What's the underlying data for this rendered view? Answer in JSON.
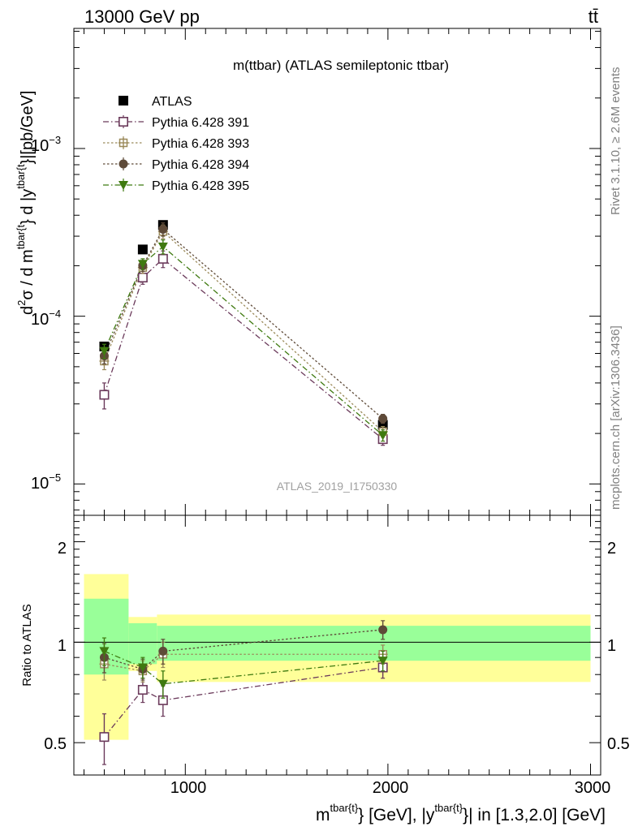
{
  "header": {
    "energy_label": "13000 GeV pp",
    "process_label": "tt̄"
  },
  "side_labels": {
    "rivet": "Rivet 3.1.10, ≥ 2.6M events",
    "mcplots": "mcplots.cern.ch [arXiv:1306.3436]"
  },
  "chart_data": [
    {
      "type": "scatter",
      "panel": "main",
      "title": "m(ttbar) (ATLAS semileptonic ttbar)",
      "watermark": "ATLAS_2019_I1750330",
      "ylabel_parts": {
        "d2": "d",
        "sq": "2",
        "sigma": "σ / d m",
        "sup1": "tbar{t",
        "mid": "} d |y",
        "sup2": "tbar{t",
        "end": "}|[pb/GeV]"
      },
      "xlabel_parts": {
        "m": "m",
        "sup1": "tbar{t}",
        "mid": "} [GeV], |y",
        "sup2": "tbar{t}",
        "end": "}| in [1.3,2.0] [GeV]"
      },
      "xlim": [
        450,
        3050
      ],
      "ylim": [
        6.5e-06,
        0.0052
      ],
      "yscale": "log",
      "ytick_labels": [
        {
          "value": 0.001,
          "base": "10",
          "exp": "−3"
        },
        {
          "value": 0.0001,
          "base": "10",
          "exp": "−4"
        },
        {
          "value": 1e-05,
          "base": "10",
          "exp": "−5"
        }
      ],
      "legend_position": "top-left",
      "x": [
        600,
        790,
        890,
        1975
      ],
      "series": [
        {
          "name": "ATLAS",
          "marker": "filled-square",
          "color": "#000000",
          "line": "none",
          "values": [
            6.6e-05,
            0.00025,
            0.00035,
            2.25e-05
          ]
        },
        {
          "name": "Pythia 6.428 391",
          "marker": "open-square",
          "color": "#6b3a5b",
          "line": "dashdot",
          "values": [
            3.4e-05,
            0.00017,
            0.00022,
            1.85e-05
          ],
          "errors": [
            6e-06,
            1.5e-05,
            2.5e-05,
            1.5e-06
          ]
        },
        {
          "name": "Pythia 6.428 393",
          "marker": "open-cross-square",
          "color": "#9b8a5a",
          "line": "dotted",
          "values": [
            5.4e-05,
            0.000195,
            0.00032,
            2.05e-05
          ],
          "errors": [
            6e-06,
            1.5e-05,
            3e-05,
            1.5e-06
          ]
        },
        {
          "name": "Pythia 6.428 394",
          "marker": "filled-circle",
          "color": "#5e4a38",
          "line": "dotted",
          "values": [
            5.8e-05,
            0.0002,
            0.00033,
            2.45e-05
          ],
          "errors": [
            6e-06,
            1.5e-05,
            3e-05,
            1.5e-06
          ]
        },
        {
          "name": "Pythia 6.428 395",
          "marker": "filled-triangle-down",
          "color": "#3f7a10",
          "line": "dashdot",
          "values": [
            6.2e-05,
            0.000205,
            0.00026,
            1.95e-05
          ],
          "errors": [
            6e-06,
            1.5e-05,
            2.5e-05,
            1.5e-06
          ]
        }
      ]
    },
    {
      "type": "scatter",
      "panel": "ratio",
      "ylabel": "Ratio to ATLAS",
      "xlim": [
        450,
        3050
      ],
      "ylim": [
        0.4,
        2.4
      ],
      "yscale": "log",
      "ytick_labels": [
        "0.5",
        "1",
        "2"
      ],
      "xtick_labels": [
        "1000",
        "2000",
        "3000"
      ],
      "reference_line": 1,
      "bands": [
        {
          "x_from": 500,
          "x_to": 720,
          "inner": [
            0.8,
            1.35
          ],
          "outer": [
            0.51,
            1.6
          ]
        },
        {
          "x_from": 720,
          "x_to": 860,
          "inner": [
            0.86,
            1.14
          ],
          "outer": [
            0.82,
            1.19
          ]
        },
        {
          "x_from": 860,
          "x_to": 3000,
          "inner": [
            0.88,
            1.12
          ],
          "outer": [
            0.76,
            1.21
          ]
        }
      ],
      "band_colors": {
        "inner": "#99ff99",
        "outer": "#ffff99"
      },
      "x": [
        600,
        790,
        890,
        1975
      ],
      "series": [
        {
          "name": "Pythia 6.428 391",
          "marker": "open-square",
          "color": "#6b3a5b",
          "line": "dashdot",
          "values": [
            0.52,
            0.72,
            0.67,
            0.84
          ],
          "errors": [
            0.09,
            0.06,
            0.07,
            0.06
          ]
        },
        {
          "name": "Pythia 6.428 393",
          "marker": "open-cross-square",
          "color": "#9b8a5a",
          "line": "dotted",
          "values": [
            0.86,
            0.82,
            0.92,
            0.92
          ],
          "errors": [
            0.09,
            0.06,
            0.08,
            0.06
          ]
        },
        {
          "name": "Pythia 6.428 394",
          "marker": "filled-circle",
          "color": "#5e4a38",
          "line": "dotted",
          "values": [
            0.9,
            0.83,
            0.94,
            1.09
          ],
          "errors": [
            0.09,
            0.06,
            0.08,
            0.07
          ]
        },
        {
          "name": "Pythia 6.428 395",
          "marker": "filled-triangle-down",
          "color": "#3f7a10",
          "line": "dashdot",
          "values": [
            0.94,
            0.84,
            0.75,
            0.88
          ],
          "errors": [
            0.09,
            0.06,
            0.07,
            0.06
          ]
        }
      ]
    }
  ]
}
